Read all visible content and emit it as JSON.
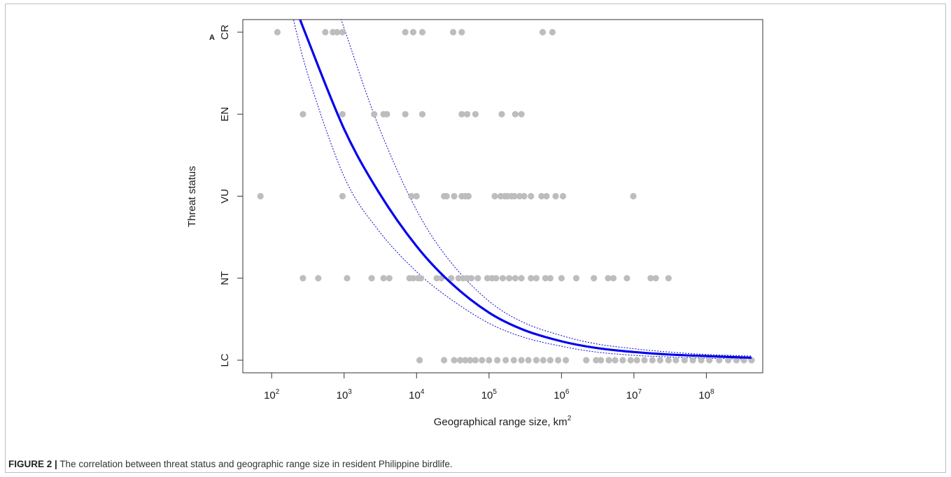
{
  "chart_data": {
    "type": "scatter",
    "xlabel": "Geographical range size, km",
    "xlabel_superscript": "2",
    "ylabel": "Threat status",
    "x_scale": "log10",
    "xlim": [
      40,
      600000000
    ],
    "x_ticks": [
      {
        "base": "10",
        "exp": "2"
      },
      {
        "base": "10",
        "exp": "3"
      },
      {
        "base": "10",
        "exp": "4"
      },
      {
        "base": "10",
        "exp": "5"
      },
      {
        "base": "10",
        "exp": "6"
      },
      {
        "base": "10",
        "exp": "7"
      },
      {
        "base": "10",
        "exp": "8"
      }
    ],
    "x_tick_values": [
      100,
      1000,
      10000,
      100000,
      1000000,
      10000000,
      100000000
    ],
    "categories": [
      "LC",
      "NT",
      "VU",
      "EN",
      "CR"
    ],
    "corner_mark": "A",
    "grid": false,
    "legend": "none",
    "points": {
      "CR": [
        120,
        550,
        700,
        800,
        950,
        7000,
        9000,
        12000,
        32000,
        42000,
        550000,
        750000
      ],
      "EN": [
        270,
        950,
        2600,
        3500,
        3900,
        7000,
        12000,
        42000,
        50000,
        65000,
        150000,
        230000,
        280000
      ],
      "VU": [
        70,
        950,
        8500,
        10000,
        24000,
        26000,
        33000,
        42000,
        47000,
        52000,
        120000,
        145000,
        165000,
        180000,
        205000,
        225000,
        265000,
        305000,
        380000,
        530000,
        620000,
        830000,
        1050000,
        9800000
      ],
      "NT": [
        270,
        440,
        1100,
        2400,
        3500,
        4200,
        8000,
        9000,
        10500,
        11500,
        19000,
        22000,
        30000,
        38000,
        44000,
        50000,
        57000,
        70000,
        95000,
        110000,
        125000,
        155000,
        190000,
        230000,
        280000,
        380000,
        450000,
        600000,
        700000,
        1000000,
        1600000,
        2800000,
        4400000,
        5200000,
        8000000,
        17000000,
        20000000,
        30000000
      ],
      "LC": [
        11000,
        24000,
        33000,
        40000,
        47000,
        55000,
        65000,
        80000,
        100000,
        130000,
        170000,
        220000,
        280000,
        350000,
        450000,
        560000,
        700000,
        900000,
        1150000,
        2200000,
        3000000,
        3500000,
        4500000,
        5500000,
        7000000,
        9000000,
        11000000,
        14000000,
        18000000,
        23000000,
        30000000,
        38000000,
        50000000,
        65000000,
        85000000,
        110000000,
        150000000,
        200000000,
        260000000,
        330000000,
        420000000
      ]
    },
    "fit_curve": [
      {
        "x": 170,
        "y": 5.54
      },
      {
        "x": 300,
        "y": 4.96
      },
      {
        "x": 1000,
        "y": 3.82
      },
      {
        "x": 3000,
        "y": 3.05
      },
      {
        "x": 10000,
        "y": 2.39
      },
      {
        "x": 30000,
        "y": 1.94
      },
      {
        "x": 100000,
        "y": 1.58
      },
      {
        "x": 300000,
        "y": 1.37
      },
      {
        "x": 1000000,
        "y": 1.23
      },
      {
        "x": 3000000,
        "y": 1.15
      },
      {
        "x": 10000000,
        "y": 1.1
      },
      {
        "x": 30000000,
        "y": 1.07
      },
      {
        "x": 100000000,
        "y": 1.05
      },
      {
        "x": 420000000,
        "y": 1.03
      }
    ],
    "ci_upper": [
      {
        "x": 650,
        "y": 5.55
      },
      {
        "x": 1000,
        "y": 5.05
      },
      {
        "x": 3000,
        "y": 3.85
      },
      {
        "x": 10000,
        "y": 2.83
      },
      {
        "x": 30000,
        "y": 2.19
      },
      {
        "x": 100000,
        "y": 1.72
      },
      {
        "x": 300000,
        "y": 1.46
      },
      {
        "x": 1000000,
        "y": 1.3
      },
      {
        "x": 3000000,
        "y": 1.2
      },
      {
        "x": 10000000,
        "y": 1.14
      },
      {
        "x": 30000000,
        "y": 1.1
      },
      {
        "x": 100000000,
        "y": 1.07
      },
      {
        "x": 420000000,
        "y": 1.05
      }
    ],
    "ci_lower": [
      {
        "x": 160,
        "y": 5.55
      },
      {
        "x": 300,
        "y": 4.55
      },
      {
        "x": 1000,
        "y": 3.24
      },
      {
        "x": 3000,
        "y": 2.58
      },
      {
        "x": 10000,
        "y": 2.08
      },
      {
        "x": 30000,
        "y": 1.74
      },
      {
        "x": 100000,
        "y": 1.45
      },
      {
        "x": 300000,
        "y": 1.28
      },
      {
        "x": 1000000,
        "y": 1.17
      },
      {
        "x": 3000000,
        "y": 1.1
      },
      {
        "x": 10000000,
        "y": 1.06
      },
      {
        "x": 30000000,
        "y": 1.04
      },
      {
        "x": 100000000,
        "y": 1.025
      },
      {
        "x": 420000000,
        "y": 1.015
      }
    ],
    "colors": {
      "points": "#bdbdbd",
      "fit": "#0000ee",
      "ci": "#1a1acc",
      "axis": "#333333"
    }
  },
  "caption": {
    "label": "FIGURE 2 |",
    "text": "The correlation between threat status and geographic range size in resident Philippine birdlife."
  }
}
